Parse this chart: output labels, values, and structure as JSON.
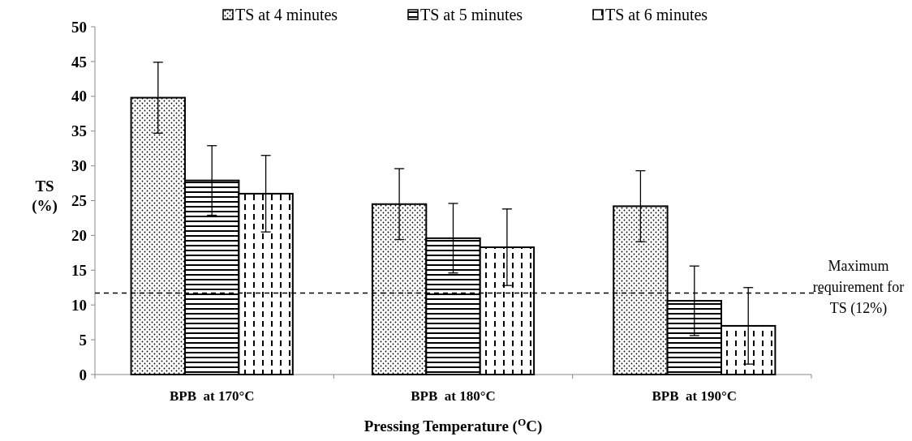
{
  "chart_data": {
    "type": "bar",
    "xlabel": "Pressing Temperature ($^{O}$C)",
    "ylabel": "TS (%)",
    "categories": [
      "BPB  at 170°C",
      "BPB  at 180°C",
      "BPB  at 190°C"
    ],
    "series": [
      {
        "name": "TS at 4 minutes",
        "color": "#000000",
        "values": [
          39.8,
          24.5,
          24.2
        ],
        "errors": [
          5.1,
          5.1,
          5.1
        ]
      },
      {
        "name": "TS at 5 minutes",
        "color": "#000000",
        "values": [
          27.9,
          19.6,
          10.6
        ],
        "errors": [
          5.0,
          5.0,
          5.0
        ]
      },
      {
        "name": "TS at 6 minutes",
        "color": "#000000",
        "values": [
          26.0,
          18.3,
          7.0
        ],
        "errors": [
          5.5,
          5.5,
          5.5
        ]
      }
    ],
    "ylim": [
      0,
      50
    ],
    "yticks": [
      0,
      5,
      10,
      15,
      20,
      25,
      30,
      35,
      40,
      45,
      50
    ],
    "ref_lines": [
      {
        "axis": "y",
        "value": 11.7,
        "label": "Maximum requirement for TS (12%)",
        "line_style": "dashed",
        "color": "#000000"
      }
    ],
    "legend": "top",
    "grid": false
  }
}
